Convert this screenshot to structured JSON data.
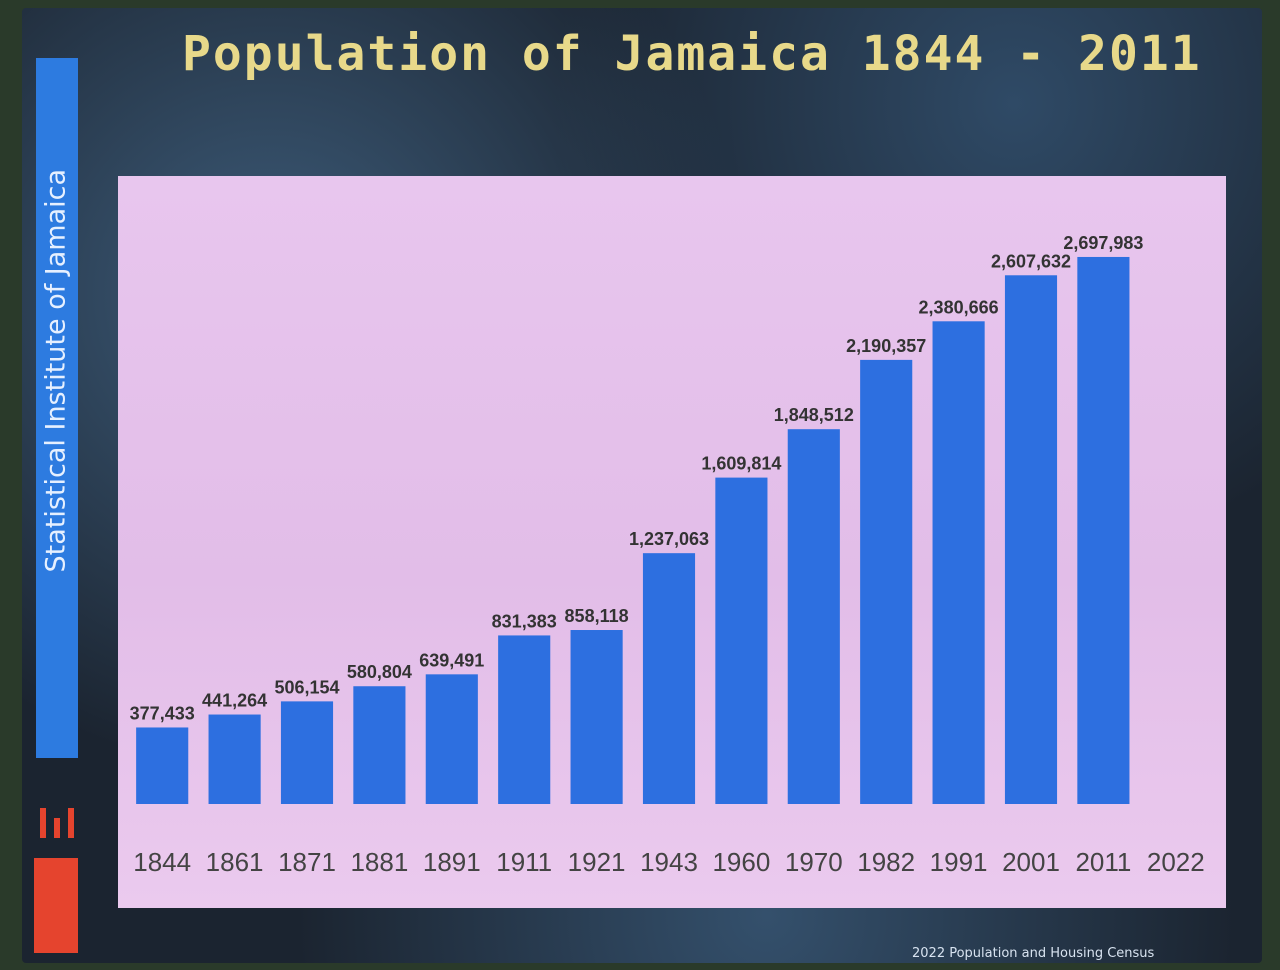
{
  "header": {
    "title": "Population of Jamaica 1844 - 2011",
    "side_label": "Statistical Institute of Jamaica",
    "footer": "2022 Population and Housing Census"
  },
  "colors": {
    "bar": "#2d6fe0",
    "plot_bg": "#e6c3ec",
    "title": "#e8d98a",
    "label": "#333333"
  },
  "chart_data": {
    "type": "bar",
    "categories": [
      "1844",
      "1861",
      "1871",
      "1881",
      "1891",
      "1911",
      "1921",
      "1943",
      "1960",
      "1970",
      "1982",
      "1991",
      "2001",
      "2011",
      "2022"
    ],
    "values": [
      377433,
      441264,
      506154,
      580804,
      639491,
      831383,
      858118,
      1237063,
      1609814,
      1848512,
      2190357,
      2380666,
      2607632,
      2697983,
      null
    ],
    "data_labels": [
      "377,433",
      "441,264",
      "506,154",
      "580,804",
      "639,491",
      "831,383",
      "858,118",
      "1,237,063",
      "1,609,814",
      "1,848,512",
      "2,190,357",
      "2,380,666",
      "2,607,632",
      "2,697,983",
      ""
    ],
    "title": "Population of Jamaica 1844 - 2011",
    "xlabel": "",
    "ylabel": "",
    "ylim": [
      0,
      2900000
    ],
    "grid": false,
    "legend": "none"
  }
}
